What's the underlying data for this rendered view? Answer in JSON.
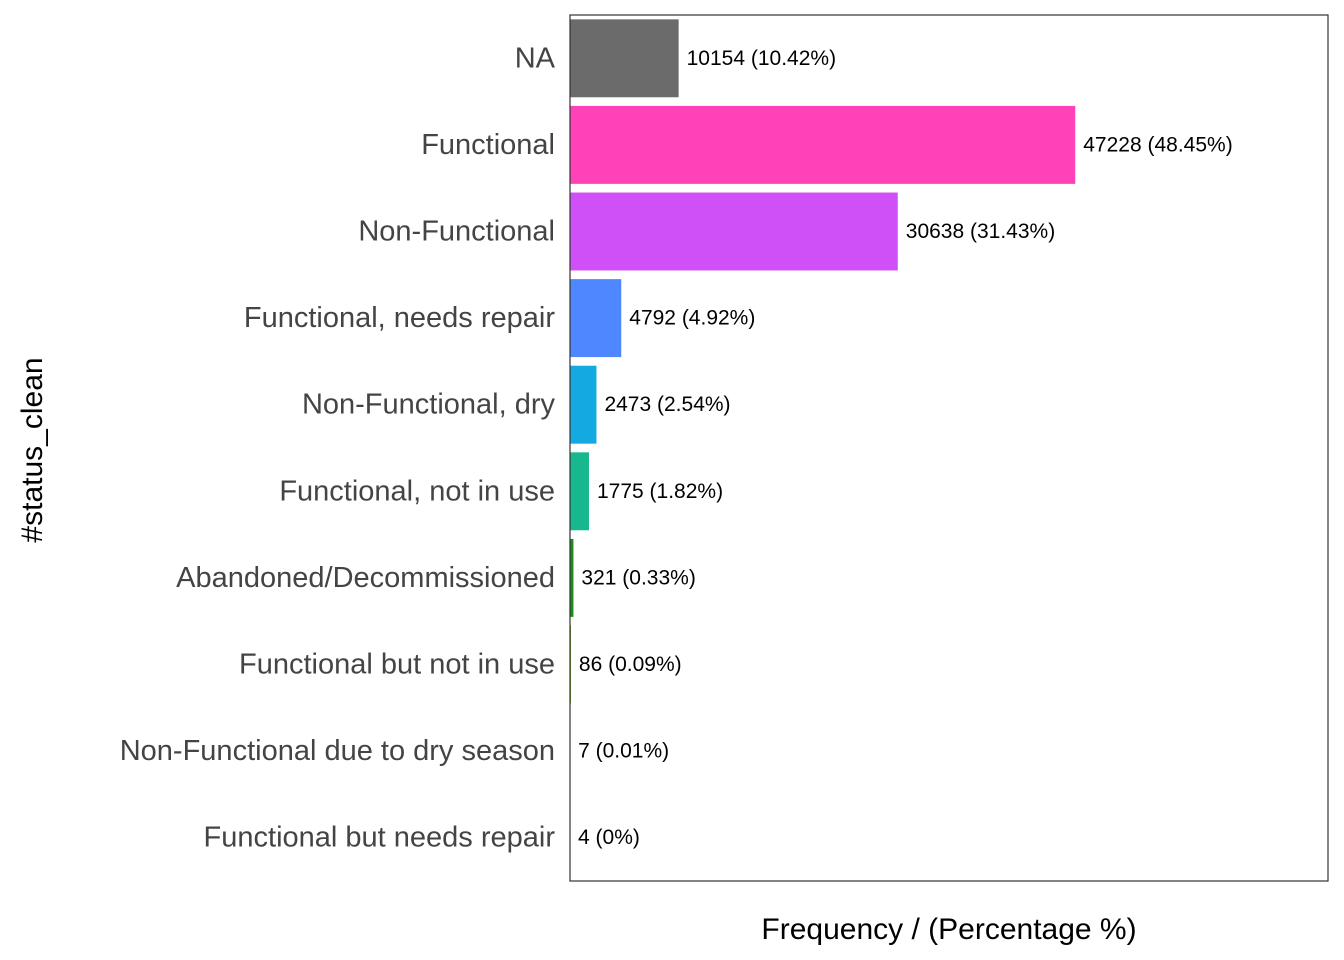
{
  "chart_data": {
    "type": "bar",
    "orientation": "horizontal",
    "xlabel": "Frequency / (Percentage %)",
    "ylabel": "#status_clean",
    "grid": false,
    "legend": "none",
    "xlim": [
      0,
      70853
    ],
    "categories": [
      "NA",
      "Functional",
      "Non-Functional",
      "Functional, needs repair",
      "Non-Functional, dry",
      "Functional, not in use",
      "Abandoned/Decommissioned",
      "Functional but not in use",
      "Non-Functional due to dry season",
      "Functional but needs repair"
    ],
    "values": [
      10154,
      47228,
      30638,
      4792,
      2473,
      1775,
      321,
      86,
      7,
      4
    ],
    "data_labels": [
      "10154 (10.42%)",
      "47228 (48.45%)",
      "30638 (31.43%)",
      "4792 (4.92%)",
      "2473 (2.54%)",
      "1775 (1.82%)",
      "321 (0.33%)",
      "86 (0.09%)",
      "7 (0.01%)",
      "4 (0%)"
    ],
    "colors": [
      "#6b6b6b",
      "#ff42b8",
      "#cf50f7",
      "#4e87ff",
      "#14a9e0",
      "#18b88f",
      "#1a8c1a",
      "#5f9a00",
      "#b19a00",
      "#e87a1c"
    ]
  }
}
